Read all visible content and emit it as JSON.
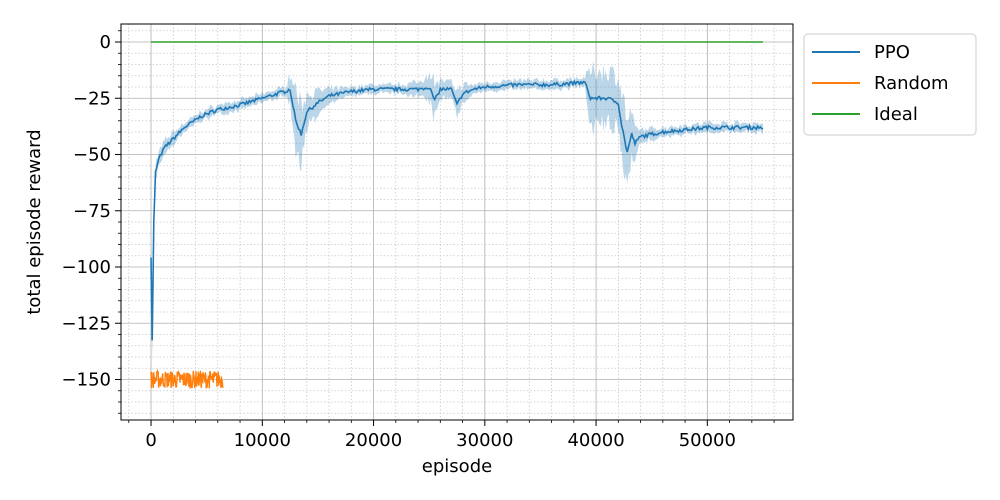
{
  "chart_data": {
    "type": "line",
    "title": "",
    "xlabel": "episode",
    "ylabel": "total episode reward",
    "xlim": [
      -2700,
      57700
    ],
    "ylim": [
      -168,
      8
    ],
    "xticks": [
      0,
      10000,
      20000,
      30000,
      40000,
      50000
    ],
    "xtick_labels": [
      "0",
      "10000",
      "20000",
      "30000",
      "40000",
      "50000"
    ],
    "yticks": [
      0,
      -25,
      -50,
      -75,
      -100,
      -125,
      -150
    ],
    "ytick_labels": [
      "0",
      "−25",
      "−50",
      "−75",
      "−100",
      "−125",
      "−150"
    ],
    "grid": true,
    "minor_grid": true,
    "legend_position": "outside-upper-right",
    "series": [
      {
        "name": "PPO",
        "color": "#1f77b4",
        "x": [
          0,
          100,
          250,
          400,
          700,
          1200,
          2000,
          3000,
          4500,
          6000,
          8000,
          10000,
          12000,
          12500,
          13000,
          13500,
          14000,
          15000,
          16000,
          18000,
          20000,
          22000,
          24000,
          25000,
          25500,
          26000,
          27000,
          27500,
          28000,
          29000,
          30000,
          33000,
          36000,
          39000,
          39500,
          41000,
          42000,
          42300,
          42800,
          43200,
          43500,
          44000,
          46000,
          48000,
          50000,
          52000,
          55000
        ],
        "y": [
          -95,
          -133,
          -80,
          -58,
          -52,
          -47,
          -43,
          -38,
          -33,
          -30,
          -28,
          -25,
          -22,
          -21,
          -35,
          -41,
          -31,
          -27,
          -24,
          -22,
          -21,
          -21,
          -21,
          -20,
          -26,
          -21,
          -21,
          -28,
          -23,
          -21,
          -20,
          -19,
          -19,
          -18,
          -25,
          -25,
          -27,
          -37,
          -49,
          -41,
          -45,
          -42,
          -40,
          -39,
          -38,
          -38,
          -38
        ],
        "band_width": [
          6,
          8,
          6,
          4,
          3,
          3,
          3,
          2,
          2,
          2,
          2,
          2,
          2,
          6,
          14,
          12,
          8,
          5,
          3,
          2,
          2,
          2,
          3,
          6,
          9,
          4,
          3,
          6,
          4,
          2,
          2,
          2,
          2,
          2,
          12,
          12,
          12,
          14,
          15,
          9,
          6,
          3,
          2,
          2,
          2,
          2,
          2
        ]
      },
      {
        "name": "Random",
        "color": "#ff7f0e",
        "x_range": [
          0,
          6500
        ],
        "mean": -150,
        "noise": 4
      },
      {
        "name": "Ideal",
        "color": "#2ca02c",
        "x": [
          0,
          55000
        ],
        "y": [
          0,
          0
        ]
      }
    ]
  }
}
